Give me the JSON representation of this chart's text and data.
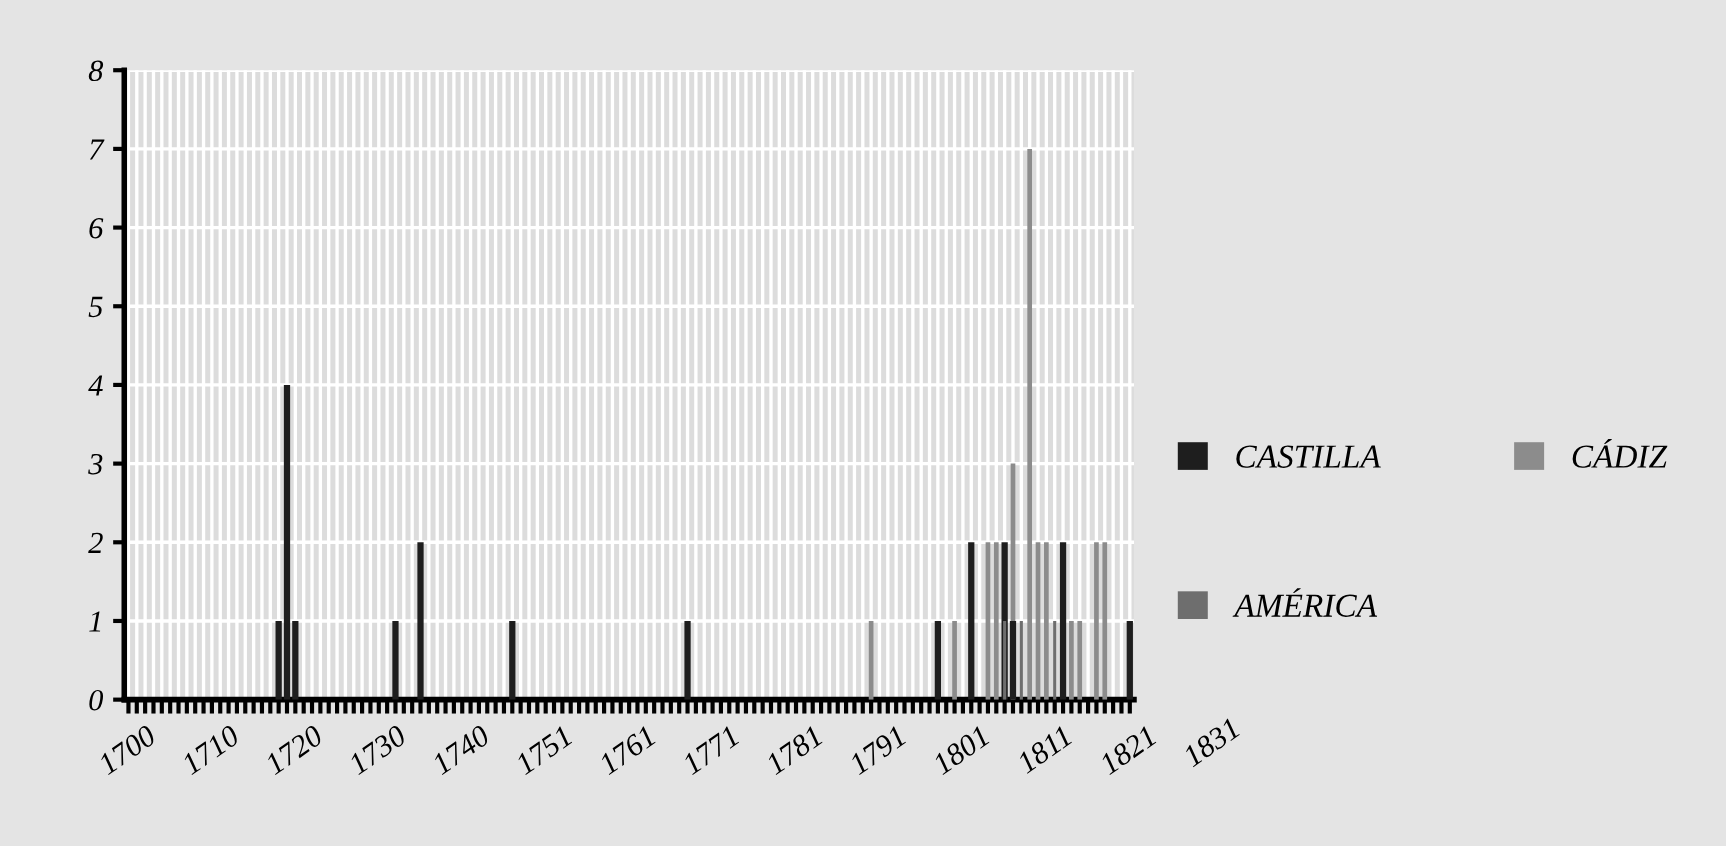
{
  "chart_data": {
    "type": "bar",
    "categories": [
      "1700",
      null,
      null,
      null,
      null,
      null,
      null,
      null,
      null,
      null,
      "1710",
      null,
      null,
      null,
      null,
      null,
      null,
      null,
      null,
      null,
      "1720",
      null,
      null,
      null,
      null,
      null,
      null,
      null,
      null,
      null,
      "1730",
      null,
      null,
      null,
      null,
      null,
      null,
      null,
      null,
      null,
      "1740",
      null,
      null,
      null,
      null,
      null,
      null,
      null,
      null,
      null,
      "1751",
      null,
      null,
      null,
      null,
      null,
      null,
      null,
      null,
      null,
      "1761",
      null,
      null,
      null,
      null,
      null,
      null,
      null,
      null,
      null,
      "1771",
      null,
      null,
      null,
      null,
      null,
      null,
      null,
      null,
      null,
      "1781",
      null,
      null,
      null,
      null,
      null,
      null,
      null,
      null,
      null,
      "1791",
      null,
      null,
      null,
      null,
      null,
      null,
      null,
      null,
      null,
      "1801",
      null,
      null,
      null,
      null,
      null,
      null,
      null,
      null,
      null,
      "1811",
      null,
      null,
      null,
      null,
      null,
      null,
      null,
      null,
      null,
      "1821"
    ],
    "series": [
      {
        "name": "CASTILLA",
        "color": "#1e1e1e",
        "values": [
          0,
          0,
          0,
          0,
          0,
          0,
          0,
          0,
          0,
          0,
          0,
          0,
          0,
          0,
          0,
          0,
          0,
          0,
          1,
          4,
          1,
          0,
          0,
          0,
          0,
          0,
          0,
          0,
          0,
          0,
          0,
          0,
          1,
          0,
          0,
          2,
          0,
          0,
          0,
          0,
          0,
          0,
          0,
          0,
          0,
          0,
          1,
          0,
          0,
          0,
          0,
          0,
          0,
          0,
          0,
          0,
          0,
          0,
          0,
          0,
          0,
          0,
          0,
          0,
          0,
          0,
          0,
          1,
          0,
          0,
          0,
          0,
          0,
          0,
          0,
          0,
          0,
          0,
          0,
          0,
          0,
          0,
          0,
          0,
          0,
          0,
          0,
          0,
          0,
          0,
          0,
          0,
          0,
          0,
          0,
          0,
          0,
          1,
          0,
          0,
          0,
          2,
          0,
          0,
          0,
          2,
          1,
          0,
          0,
          0,
          0,
          0,
          2,
          0,
          0,
          0,
          0,
          0,
          0,
          0,
          1
        ]
      },
      {
        "name": "CÁDIZ",
        "color": "#8c8c8c",
        "values": [
          0,
          0,
          0,
          0,
          0,
          0,
          0,
          0,
          0,
          0,
          0,
          0,
          0,
          0,
          0,
          0,
          0,
          0,
          0,
          0,
          0,
          0,
          0,
          0,
          0,
          0,
          0,
          0,
          0,
          0,
          0,
          0,
          0,
          0,
          0,
          0,
          0,
          0,
          0,
          0,
          0,
          0,
          0,
          0,
          0,
          0,
          0,
          0,
          0,
          0,
          0,
          0,
          0,
          0,
          0,
          0,
          0,
          0,
          0,
          0,
          0,
          0,
          0,
          0,
          0,
          0,
          0,
          0,
          0,
          0,
          0,
          0,
          0,
          0,
          0,
          0,
          0,
          0,
          0,
          0,
          0,
          0,
          0,
          0,
          0,
          0,
          0,
          0,
          0,
          1,
          0,
          0,
          0,
          0,
          0,
          0,
          0,
          0,
          0,
          1,
          0,
          0,
          0,
          2,
          2,
          0,
          3,
          0,
          7,
          2,
          2,
          0,
          0,
          1,
          1,
          0,
          2,
          2,
          0,
          0,
          0
        ]
      },
      {
        "name": "AMÉRICA",
        "color": "#6e6e6e",
        "values": [
          0,
          0,
          0,
          0,
          0,
          0,
          0,
          0,
          0,
          0,
          0,
          0,
          0,
          0,
          0,
          0,
          0,
          0,
          0,
          0,
          0,
          0,
          0,
          0,
          0,
          0,
          0,
          0,
          0,
          0,
          0,
          0,
          0,
          0,
          0,
          0,
          0,
          0,
          0,
          0,
          0,
          0,
          0,
          0,
          0,
          0,
          0,
          0,
          0,
          0,
          0,
          0,
          0,
          0,
          0,
          0,
          0,
          0,
          0,
          0,
          0,
          0,
          0,
          0,
          0,
          0,
          0,
          0,
          0,
          0,
          0,
          0,
          0,
          0,
          0,
          0,
          0,
          0,
          0,
          0,
          0,
          0,
          0,
          0,
          0,
          0,
          0,
          0,
          0,
          0,
          0,
          0,
          0,
          0,
          0,
          0,
          0,
          0,
          0,
          0,
          0,
          0,
          0,
          0,
          0,
          1,
          0,
          1,
          0,
          0,
          0,
          1,
          0,
          0,
          0,
          0,
          0,
          0,
          0,
          0,
          0
        ]
      }
    ],
    "ylim": [
      0,
      8
    ],
    "yticks": [
      0,
      1,
      2,
      3,
      4,
      5,
      6,
      7,
      8
    ],
    "grid": true,
    "legend": "right",
    "annotations": [
      "1831"
    ]
  }
}
